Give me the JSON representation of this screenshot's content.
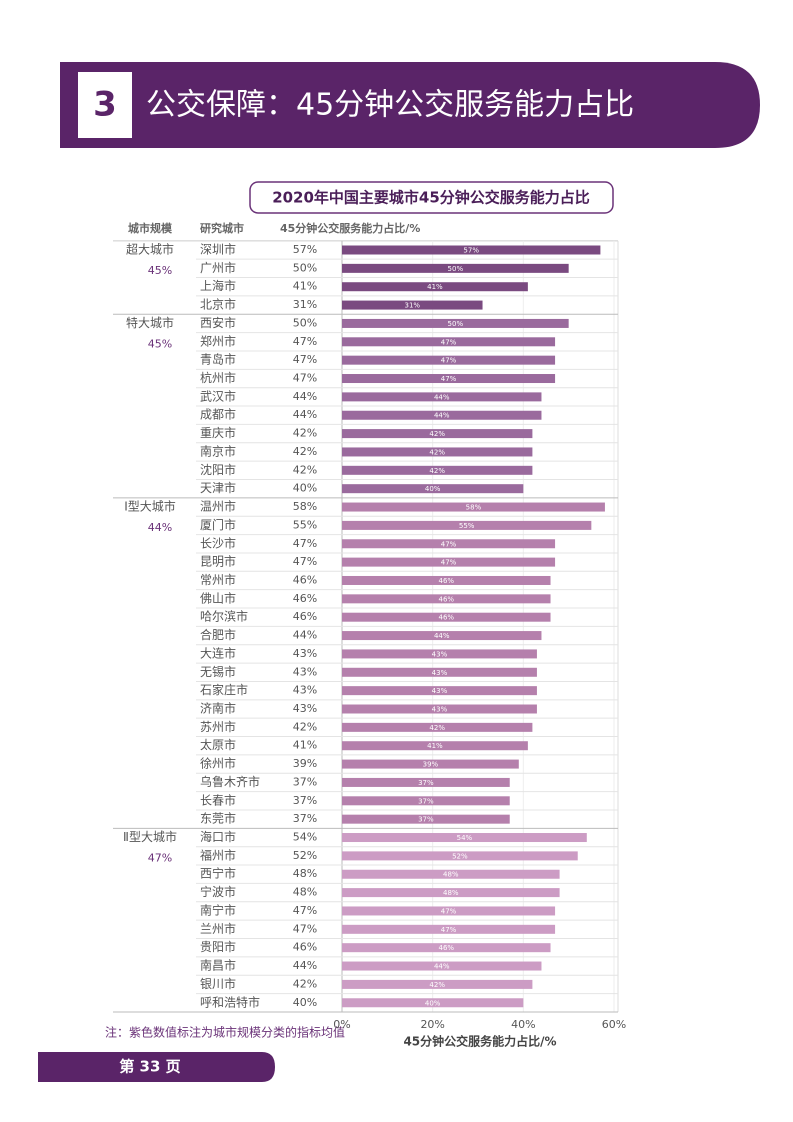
{
  "header": {
    "number": "3",
    "title": "公交保障：45分钟公交服务能力占比"
  },
  "chart_data": {
    "type": "bar",
    "orientation": "horizontal",
    "title": "2020年中国主要城市45分钟公交服务能力占比",
    "column_headers": [
      "城市规模",
      "研究城市",
      "45分钟公交服务能力占比/%"
    ],
    "series": [
      {
        "name": "超大城市",
        "average": "45%",
        "color": "#7a4a80",
        "categories": [
          "深圳市",
          "广州市",
          "上海市",
          "北京市"
        ],
        "values": [
          57,
          50,
          41,
          31
        ],
        "value_labels": [
          "57%",
          "50%",
          "41%",
          "31%"
        ]
      },
      {
        "name": "特大城市",
        "average": "45%",
        "color": "#9a6a9d",
        "categories": [
          "西安市",
          "郑州市",
          "青岛市",
          "杭州市",
          "武汉市",
          "成都市",
          "重庆市",
          "南京市",
          "沈阳市",
          "天津市"
        ],
        "values": [
          50,
          47,
          47,
          47,
          44,
          44,
          42,
          42,
          42,
          40
        ],
        "value_labels": [
          "50%",
          "47%",
          "47%",
          "47%",
          "44%",
          "44%",
          "42%",
          "42%",
          "42%",
          "40%"
        ]
      },
      {
        "name": "Ⅰ型大城市",
        "average": "44%",
        "color": "#b580ac",
        "categories": [
          "温州市",
          "厦门市",
          "长沙市",
          "昆明市",
          "常州市",
          "佛山市",
          "哈尔滨市",
          "合肥市",
          "大连市",
          "无锡市",
          "石家庄市",
          "济南市",
          "苏州市",
          "太原市",
          "徐州市",
          "乌鲁木齐市",
          "长春市",
          "东莞市"
        ],
        "values": [
          58,
          55,
          47,
          47,
          46,
          46,
          46,
          44,
          43,
          43,
          43,
          43,
          42,
          41,
          39,
          37,
          37,
          37
        ],
        "value_labels": [
          "58%",
          "55%",
          "47%",
          "47%",
          "46%",
          "46%",
          "46%",
          "44%",
          "43%",
          "43%",
          "43%",
          "43%",
          "42%",
          "41%",
          "39%",
          "37%",
          "37%",
          "37%"
        ]
      },
      {
        "name": "Ⅱ型大城市",
        "average": "47%",
        "color": "#cc9cc4",
        "categories": [
          "海口市",
          "福州市",
          "西宁市",
          "宁波市",
          "南宁市",
          "兰州市",
          "贵阳市",
          "南昌市",
          "银川市",
          "呼和浩特市"
        ],
        "values": [
          54,
          52,
          48,
          48,
          47,
          47,
          46,
          44,
          42,
          40
        ],
        "value_labels": [
          "54%",
          "52%",
          "48%",
          "48%",
          "47%",
          "47%",
          "46%",
          "44%",
          "42%",
          "40%"
        ]
      }
    ],
    "xlim": [
      0,
      60
    ],
    "xticks": [
      {
        "value": 0,
        "label": "0%"
      },
      {
        "value": 20,
        "label": "20%"
      },
      {
        "value": 40,
        "label": "40%"
      },
      {
        "value": 60,
        "label": "60%"
      }
    ],
    "xlabel": "45分钟公交服务能力占比/%",
    "note": "注：紫色数值标注为城市规模分类的指标均值"
  },
  "footer": {
    "page": "第 33 页"
  }
}
